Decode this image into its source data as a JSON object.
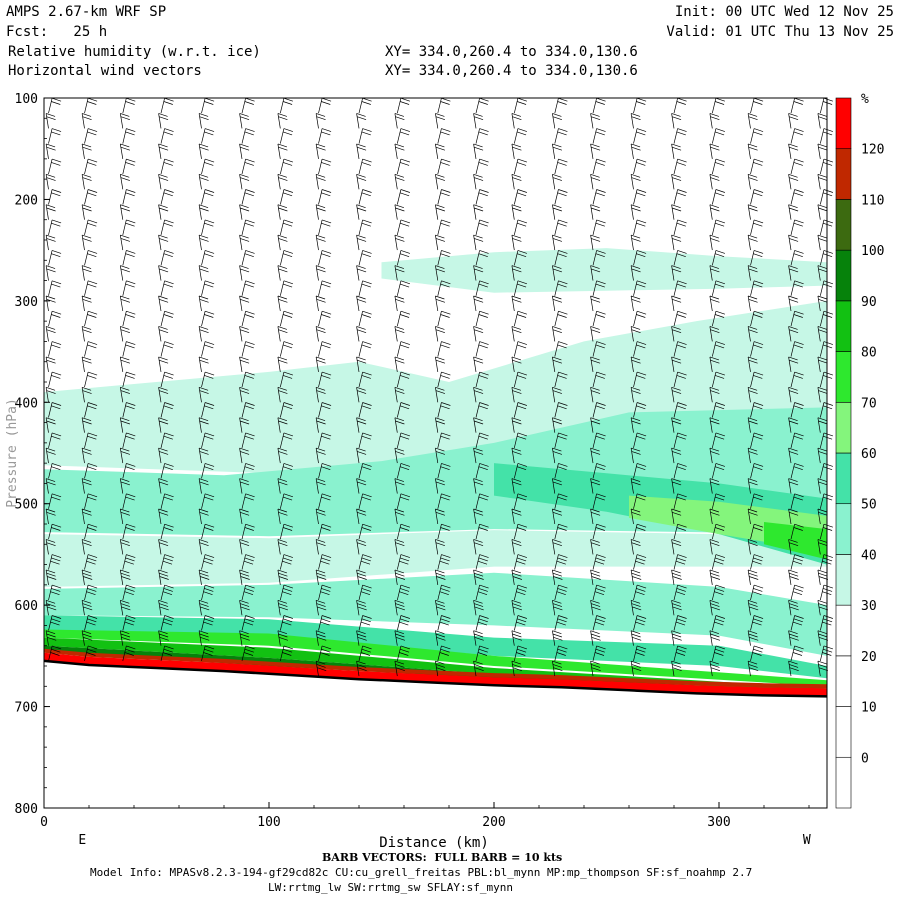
{
  "header": {
    "model": "AMPS 2.67-km WRF SP",
    "forecast": "Fcst:   25 h",
    "field1": "Relative humidity (w.r.t. ice)",
    "field2": "Horizontal wind vectors",
    "init": "Init: 00 UTC Wed 12 Nov 25",
    "valid": "Valid: 01 UTC Thu 13 Nov 25",
    "xy1": "XY= 334.0,260.4 to 334.0,130.6",
    "xy2": "XY= 334.0,260.4 to 334.0,130.6"
  },
  "footer": {
    "barb_note": "BARB VECTORS:  FULL BARB = 10 kts",
    "model_info": "Model Info: MPASv8.2.3-194-gf29cd82c CU:cu_grell_freitas PBL:bl_mynn MP:mp_thompson SF:sf_noahmp 2.7",
    "model_info2": "LW:rrtmg_lw SW:rrtmg_sw SFLAY:sf_mynn"
  },
  "chart_data": {
    "type": "heatmap",
    "title": "Relative humidity (w.r.t. ice) cross-section",
    "xlabel": "Distance (km)",
    "ylabel": "Pressure (hPa)",
    "xlim": [
      0,
      348
    ],
    "ylim": [
      100,
      800
    ],
    "x_ticks": [
      0,
      100,
      200,
      300
    ],
    "y_ticks": [
      100,
      200,
      300,
      400,
      500,
      600,
      700,
      800
    ],
    "x_end_labels": [
      "E",
      "W"
    ],
    "colorbar": {
      "unit": "%",
      "levels": [
        0,
        10,
        20,
        30,
        40,
        50,
        60,
        70,
        80,
        90,
        100,
        110,
        120
      ],
      "colors": [
        "#ffffff",
        "#ffffff",
        "#ffffff",
        "#c6f7e6",
        "#8af2cf",
        "#44e2a8",
        "#84f57c",
        "#2ee82e",
        "#12c112",
        "#06820b",
        "#3c6a10",
        "#c02800",
        "#ff0000"
      ]
    },
    "terrain_surface_hpa": [
      [
        0,
        655
      ],
      [
        20,
        659
      ],
      [
        50,
        662
      ],
      [
        80,
        665
      ],
      [
        110,
        669
      ],
      [
        140,
        673
      ],
      [
        170,
        676
      ],
      [
        200,
        679
      ],
      [
        230,
        681
      ],
      [
        260,
        684
      ],
      [
        290,
        687
      ],
      [
        320,
        689
      ],
      [
        348,
        690
      ]
    ],
    "rh_layers": [
      {
        "rh": 30,
        "top": [
          [
            0,
            390
          ],
          [
            40,
            382
          ],
          [
            100,
            370
          ],
          [
            140,
            360
          ],
          [
            180,
            380
          ],
          [
            240,
            340
          ],
          [
            290,
            320
          ],
          [
            348,
            300
          ]
        ],
        "bottom": [
          [
            0,
            462
          ],
          [
            100,
            470
          ],
          [
            200,
            475
          ],
          [
            348,
            480
          ]
        ]
      },
      {
        "rh": 30,
        "top": [
          [
            150,
            262
          ],
          [
            200,
            252
          ],
          [
            250,
            248
          ],
          [
            300,
            256
          ],
          [
            348,
            262
          ]
        ],
        "bottom": [
          [
            150,
            278
          ],
          [
            200,
            292
          ],
          [
            250,
            290
          ],
          [
            300,
            288
          ],
          [
            348,
            285
          ]
        ]
      },
      {
        "rh": 40,
        "top": [
          [
            0,
            466
          ],
          [
            80,
            472
          ],
          [
            150,
            458
          ],
          [
            200,
            440
          ],
          [
            260,
            410
          ],
          [
            348,
            405
          ]
        ],
        "bottom": [
          [
            0,
            528
          ],
          [
            100,
            532
          ],
          [
            200,
            525
          ],
          [
            348,
            530
          ]
        ]
      },
      {
        "rh": 30,
        "top": [
          [
            0,
            530
          ],
          [
            100,
            534
          ],
          [
            200,
            526
          ],
          [
            348,
            532
          ]
        ],
        "bottom": [
          [
            0,
            582
          ],
          [
            100,
            578
          ],
          [
            200,
            562
          ],
          [
            348,
            562
          ]
        ]
      },
      {
        "rh": 50,
        "top": [
          [
            200,
            460
          ],
          [
            250,
            470
          ],
          [
            300,
            480
          ],
          [
            348,
            495
          ]
        ],
        "bottom": [
          [
            200,
            492
          ],
          [
            250,
            508
          ],
          [
            300,
            530
          ],
          [
            348,
            560
          ]
        ]
      },
      {
        "rh": 60,
        "top": [
          [
            260,
            492
          ],
          [
            300,
            498
          ],
          [
            348,
            512
          ]
        ],
        "bottom": [
          [
            260,
            514
          ],
          [
            300,
            530
          ],
          [
            348,
            548
          ]
        ]
      },
      {
        "rh": 70,
        "top": [
          [
            320,
            518
          ],
          [
            348,
            525
          ]
        ],
        "bottom": [
          [
            320,
            540
          ],
          [
            348,
            555
          ]
        ]
      },
      {
        "rh": 40,
        "top": [
          [
            0,
            584
          ],
          [
            100,
            580
          ],
          [
            200,
            568
          ],
          [
            300,
            582
          ],
          [
            348,
            600
          ]
        ],
        "bottom": [
          [
            0,
            610
          ],
          [
            100,
            612
          ],
          [
            200,
            620
          ],
          [
            300,
            630
          ],
          [
            348,
            650
          ]
        ]
      },
      {
        "rh": 50,
        "top": [
          [
            0,
            610
          ],
          [
            100,
            614
          ],
          [
            200,
            632
          ],
          [
            300,
            640
          ],
          [
            348,
            660
          ]
        ],
        "bottom": [
          [
            0,
            625
          ],
          [
            100,
            630
          ],
          [
            200,
            650
          ],
          [
            300,
            660
          ],
          [
            348,
            672
          ]
        ]
      },
      {
        "rh": 70,
        "top": [
          [
            0,
            624
          ],
          [
            100,
            628
          ],
          [
            200,
            650
          ],
          [
            348,
            674
          ]
        ],
        "bottom": [
          [
            0,
            632
          ],
          [
            100,
            640
          ],
          [
            200,
            660
          ],
          [
            348,
            680
          ]
        ]
      },
      {
        "rh": 80,
        "top": [
          [
            0,
            632
          ],
          [
            100,
            642
          ],
          [
            200,
            662
          ],
          [
            348,
            682
          ]
        ],
        "bottom": [
          [
            0,
            640
          ],
          [
            100,
            652
          ],
          [
            200,
            668
          ],
          [
            348,
            686
          ]
        ]
      },
      {
        "rh": 90,
        "top": [
          [
            0,
            640
          ],
          [
            100,
            652
          ],
          [
            200,
            668
          ],
          [
            348,
            686
          ]
        ],
        "bottom": [
          [
            0,
            646
          ],
          [
            100,
            660
          ],
          [
            200,
            672
          ],
          [
            348,
            688
          ]
        ]
      }
    ],
    "barb_columns_km": [
      2,
      18,
      35,
      52,
      70,
      88,
      105,
      122,
      140,
      157,
      175,
      192,
      209,
      227,
      244,
      262,
      280,
      297,
      314,
      332,
      345
    ],
    "barb_levels_hpa": [
      115,
      130,
      145,
      160,
      175,
      190,
      205,
      220,
      235,
      250,
      265,
      280,
      295,
      310,
      325,
      340,
      355,
      370,
      385,
      400,
      415,
      430,
      445,
      460,
      475,
      490,
      505,
      520,
      535,
      550,
      565,
      580,
      595,
      610,
      625,
      640,
      655,
      670
    ]
  }
}
